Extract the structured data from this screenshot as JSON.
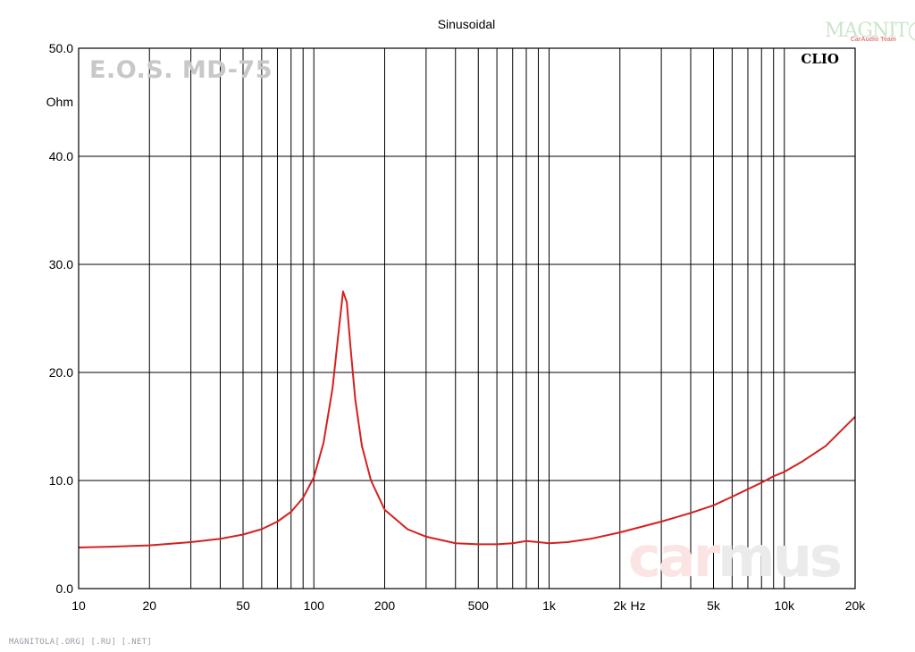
{
  "chart_data": {
    "type": "line",
    "title": "Sinusoidal",
    "ylabel": "Ohm",
    "xlabel": "Hz",
    "xscale": "log",
    "xlim": [
      10,
      20000
    ],
    "ylim": [
      0,
      50
    ],
    "grid": true,
    "y_ticks": [
      "0.0",
      "10.0",
      "20.0",
      "30.0",
      "40.0",
      "50.0"
    ],
    "y_tick_values": [
      0,
      10,
      20,
      30,
      40,
      50
    ],
    "x_ticks": [
      {
        "value": 10,
        "label": "10"
      },
      {
        "value": 20,
        "label": "20"
      },
      {
        "value": 50,
        "label": "50"
      },
      {
        "value": 100,
        "label": "100"
      },
      {
        "value": 200,
        "label": "200"
      },
      {
        "value": 500,
        "label": "500"
      },
      {
        "value": 1000,
        "label": "1k"
      },
      {
        "value": 2000,
        "label": "2k"
      },
      {
        "value": 5000,
        "label": "5k"
      },
      {
        "value": 10000,
        "label": "10k"
      },
      {
        "value": 20000,
        "label": "20k"
      }
    ],
    "series": [
      {
        "color": "#d42020",
        "x": [
          10,
          15,
          20,
          30,
          40,
          50,
          60,
          70,
          80,
          90,
          100,
          110,
          120,
          127,
          133,
          138,
          143,
          150,
          160,
          175,
          200,
          250,
          300,
          400,
          500,
          600,
          700,
          800,
          900,
          1000,
          1200,
          1500,
          2000,
          3000,
          4000,
          5000,
          6000,
          7000,
          8000,
          9000,
          10000,
          12000,
          15000,
          20000
        ],
        "values": [
          3.8,
          3.9,
          4.0,
          4.3,
          4.6,
          5.0,
          5.5,
          6.2,
          7.1,
          8.4,
          10.3,
          13.5,
          18.5,
          23.5,
          27.5,
          26.5,
          22.5,
          17.5,
          13.2,
          10.0,
          7.3,
          5.5,
          4.8,
          4.2,
          4.1,
          4.1,
          4.2,
          4.4,
          4.3,
          4.2,
          4.3,
          4.6,
          5.2,
          6.2,
          7.0,
          7.7,
          8.5,
          9.2,
          9.8,
          10.4,
          10.8,
          11.8,
          13.2,
          15.9
        ]
      }
    ]
  },
  "watermarks": {
    "model": "E.O.S. MD-75",
    "clio": "CLIO",
    "carmus_car": "car",
    "carmus_mus": "mus",
    "magnitola_top": "MAGNIT◯LA",
    "magnitola_sub": "CarAudio Team",
    "footer": "MAGNITOLA[.ORG] [.RU] [.NET]"
  },
  "colors": {
    "curve": "#d42020",
    "grid": "#000000",
    "carmus_car": "#fbe4e4",
    "carmus_mus": "#ebebeb"
  }
}
